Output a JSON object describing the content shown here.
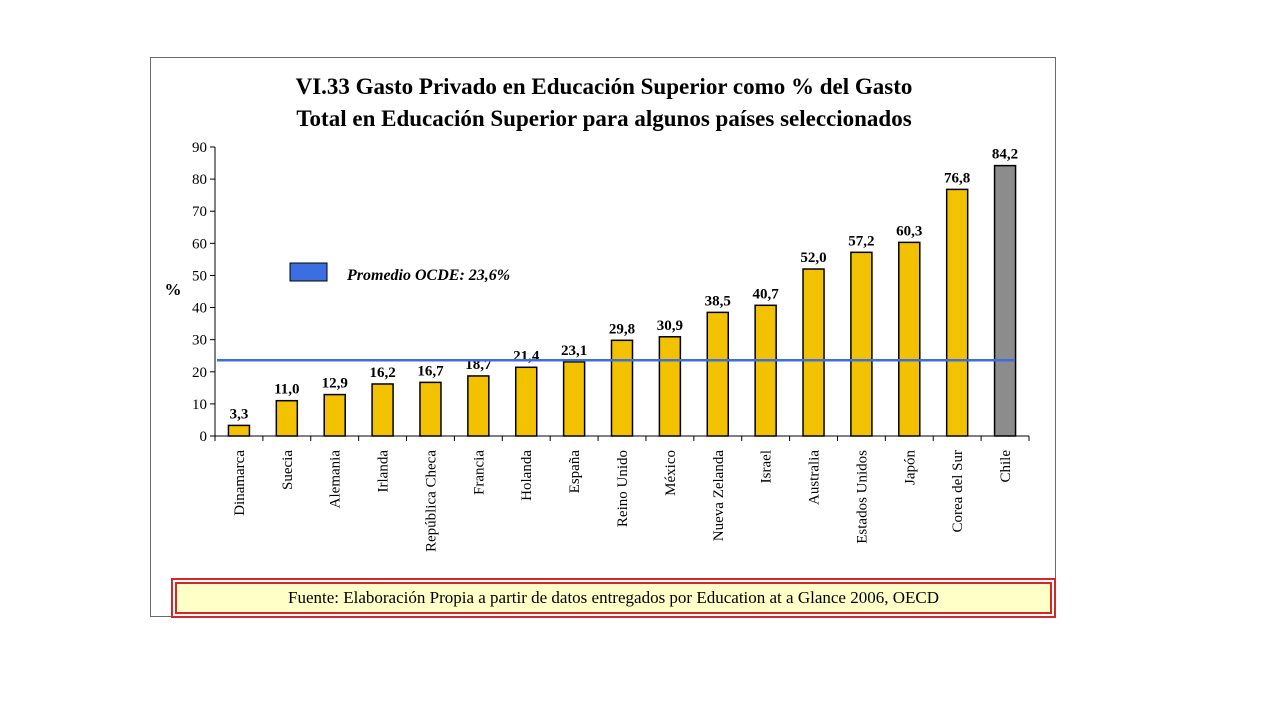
{
  "chart_data": {
    "type": "bar",
    "title_lines": [
      "VI.33 Gasto Privado en Educación Superior como % del Gasto",
      "Total en Educación Superior para algunos países seleccionados"
    ],
    "ylabel": "%",
    "xlabel": "",
    "ylim": [
      0,
      90
    ],
    "yticks": [
      0,
      10,
      20,
      30,
      40,
      50,
      60,
      70,
      80,
      90
    ],
    "categories": [
      "Dinamarca",
      "Suecia",
      "Alemania",
      "Irlanda",
      "República Checa",
      "Francia",
      "Holanda",
      "España",
      "Reino Unido",
      "México",
      "Nueva Zelanda",
      "Israel",
      "Australia",
      "Estados Unidos",
      "Japón",
      "Corea del Sur",
      "Chile"
    ],
    "values": [
      3.3,
      11.0,
      12.9,
      16.2,
      16.7,
      18.7,
      21.4,
      23.1,
      29.8,
      30.9,
      38.5,
      40.7,
      52.0,
      57.2,
      60.3,
      76.8,
      84.2
    ],
    "value_labels": [
      "3,3",
      "11,0",
      "12,9",
      "16,2",
      "16,7",
      "18,7",
      "21,4",
      "23,1",
      "29,8",
      "30,9",
      "38,5",
      "40,7",
      "52,0",
      "57,2",
      "60,3",
      "76,8",
      "84,2"
    ],
    "bar_colors": [
      "#f2c200",
      "#f2c200",
      "#f2c200",
      "#f2c200",
      "#f2c200",
      "#f2c200",
      "#f2c200",
      "#f2c200",
      "#f2c200",
      "#f2c200",
      "#f2c200",
      "#f2c200",
      "#f2c200",
      "#f2c200",
      "#f2c200",
      "#f2c200",
      "#8c8c8c"
    ],
    "reference_line": {
      "value": 23.6,
      "label": "Promedio OCDE: 23,6%",
      "color": "#3b6fe0"
    },
    "grid": false,
    "legend": "inside-left"
  },
  "footer": {
    "source": "Fuente: Elaboración Propia a partir de datos entregados por Education at a Glance 2006, OECD"
  },
  "colors": {
    "frame_border": "#6b6b6b",
    "source_border": "#d62728",
    "source_bg": "#ffffc8"
  }
}
